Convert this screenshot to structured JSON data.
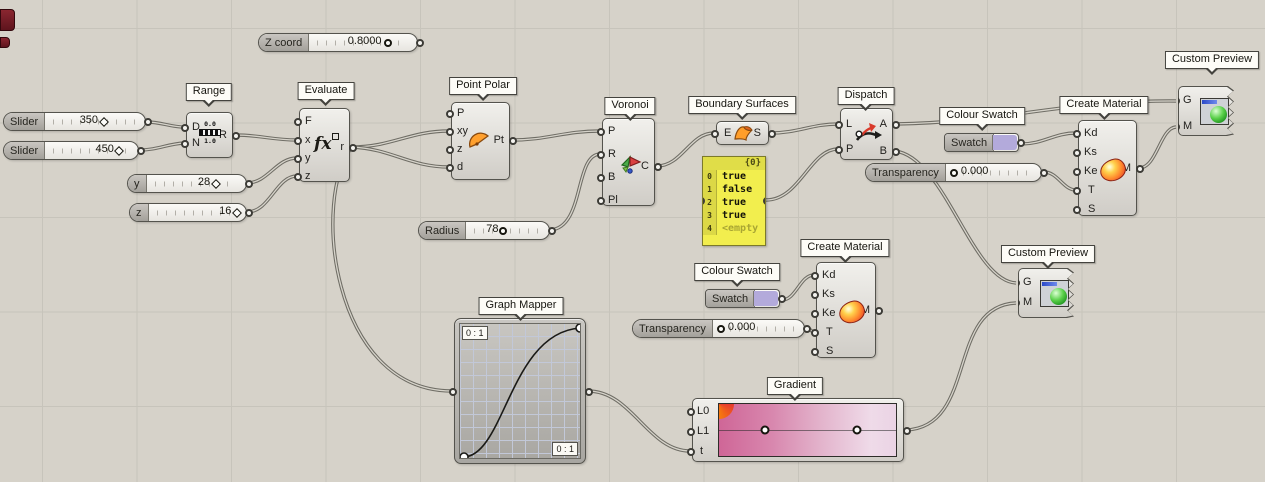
{
  "colors": {
    "canvas_bg": "#d6d2c9",
    "grid_line": "#c7c4bb",
    "wire_outer": "#6f6d65",
    "wire_inner": "#d7d4cb",
    "panel_bg": "#f2ee4e",
    "swatch": "#b3aadb"
  },
  "sliders": {
    "z_coord": {
      "label": "Z coord",
      "value": "0.8000"
    },
    "a": {
      "label": "Slider",
      "value": "350"
    },
    "b": {
      "label": "Slider",
      "value": "450"
    },
    "y": {
      "label": "y",
      "value": "28"
    },
    "z": {
      "label": "z",
      "value": "16"
    },
    "radius": {
      "label": "Radius",
      "value": "78"
    },
    "t1": {
      "label": "Transparency",
      "value": "0.000"
    },
    "t2": {
      "label": "Transparency",
      "value": "0.000"
    }
  },
  "range": {
    "tooltip": "Range",
    "in": [
      "D",
      "N"
    ],
    "out": "R",
    "icon": {
      "top": "0.0",
      "bottom": "1.0"
    }
  },
  "evaluate": {
    "tooltip": "Evaluate",
    "in": [
      "F",
      "x",
      "y",
      "z"
    ],
    "out": "r",
    "icon_text": "fx"
  },
  "point_polar": {
    "tooltip": "Point Polar",
    "in": [
      "P",
      "xy",
      "z",
      "d"
    ],
    "out": "Pt"
  },
  "voronoi": {
    "tooltip": "Voronoi",
    "in": [
      "P",
      "R",
      "B",
      "Pl"
    ],
    "out": "C"
  },
  "boundary": {
    "tooltip": "Boundary Surfaces",
    "in": [
      "E"
    ],
    "out": "S"
  },
  "panel": {
    "header": "{0}",
    "rows": [
      {
        "n": "0",
        "v": "true"
      },
      {
        "n": "1",
        "v": "false"
      },
      {
        "n": "2",
        "v": "true"
      },
      {
        "n": "3",
        "v": "true"
      },
      {
        "n": "4",
        "v": "<empty"
      }
    ]
  },
  "dispatch": {
    "tooltip": "Dispatch",
    "in": [
      "L",
      "P"
    ],
    "out": [
      "A",
      "B"
    ]
  },
  "swatch1": {
    "tooltip": "Colour Swatch",
    "label": "Swatch",
    "color": "#b3aadb"
  },
  "swatch2": {
    "tooltip": "Colour Swatch",
    "label": "Swatch",
    "color": "#b3aadb"
  },
  "material1": {
    "tooltip": "Create Material",
    "in": [
      "Kd",
      "Ks",
      "Ke",
      "T",
      "S"
    ],
    "out": "M"
  },
  "material2": {
    "tooltip": "Create Material",
    "in": [
      "Kd",
      "Ks",
      "Ke",
      "T",
      "S"
    ],
    "out": "M"
  },
  "preview1": {
    "tooltip": "Custom Preview",
    "in": [
      "G",
      "M"
    ]
  },
  "preview2": {
    "tooltip": "Custom Preview",
    "in": [
      "G",
      "M"
    ]
  },
  "graph_mapper": {
    "tooltip": "Graph Mapper",
    "scale_tl": "0 : 1",
    "scale_br": "0 : 1"
  },
  "gradient": {
    "tooltip": "Gradient",
    "in": [
      "L0",
      "L1",
      "t"
    ],
    "stops": [
      "#cf6697 0%",
      "#d887ae 30%",
      "#e3b4cc 58%",
      "#efdbe9 86%",
      "#ead3e4 100%"
    ]
  }
}
